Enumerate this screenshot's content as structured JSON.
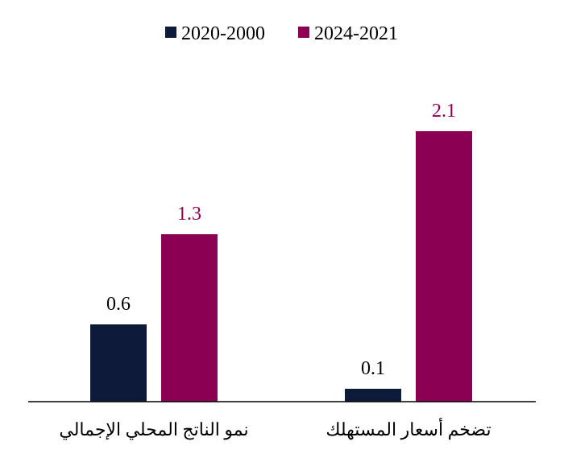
{
  "chart_data": {
    "type": "bar",
    "categories": [
      "نمو الناتج المحلي الإجمالي",
      "تضخم أسعار المستهلك"
    ],
    "series": [
      {
        "name": "2020-2000",
        "values": [
          0.6,
          0.1
        ],
        "color": "#0d1a3a"
      },
      {
        "name": "2024-2021",
        "values": [
          1.3,
          2.1
        ],
        "color": "#8b0052"
      }
    ],
    "data_labels": [
      [
        "0.6",
        "0.1"
      ],
      [
        "1.3",
        "2.1"
      ]
    ],
    "ylim": [
      0,
      2.1
    ],
    "grid": false,
    "legend_position": "top-center"
  }
}
